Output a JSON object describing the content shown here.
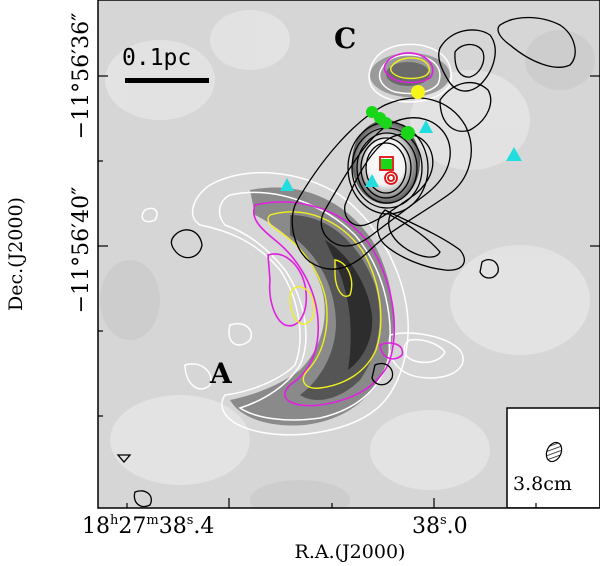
{
  "map": {
    "labels": {
      "region_a": "A",
      "region_c": "C"
    },
    "scale_bar": {
      "text": "0.1pc"
    },
    "beam": {
      "text": "3.8cm"
    },
    "axes": {
      "x_title": "R.A.(J2000)",
      "y_title": "Dec.(J2000)",
      "x_ticks": [
        {
          "h": "18",
          "h_unit": "h",
          "m": "27",
          "m_unit": "m",
          "s_int": "38",
          "s_unit": "s",
          "s_frac": ".4"
        },
        {
          "s_int": "38",
          "s_unit": "s",
          "s_frac": ".0"
        }
      ],
      "y_ticks": [
        {
          "deg": "−11°56′36",
          "sec_mark": "″"
        },
        {
          "deg": "−11°56′40",
          "sec_mark": "″"
        }
      ]
    },
    "colors": {
      "background": "#ffffff",
      "map_gray": "#d6d6d6",
      "contour_white": "#ffffff",
      "contour_black": "#000000",
      "contour_magenta": "#e020e0",
      "contour_yellow": "#f0f020",
      "marker_green": "#19d619",
      "marker_yellow": "#f5f51a",
      "marker_cyan": "#22dde0",
      "marker_red": "#e01010"
    }
  }
}
